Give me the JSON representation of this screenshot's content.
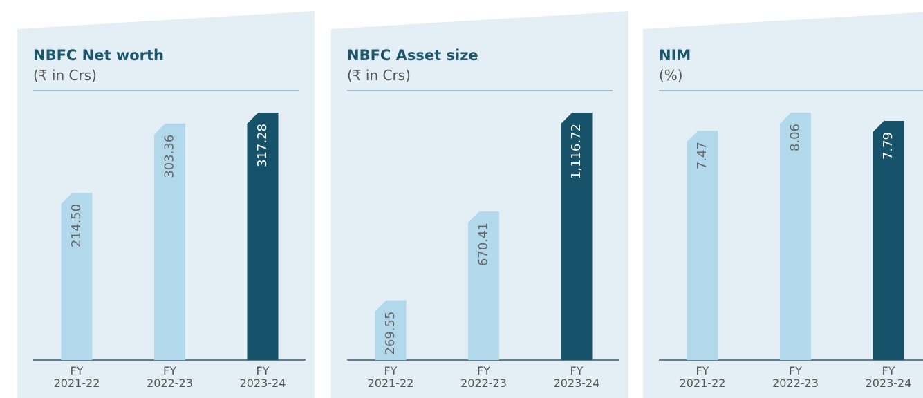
{
  "chart_data": [
    {
      "type": "bar",
      "title": "NBFC Net worth",
      "subtitle": "(₹ in Crs)",
      "categories": [
        "FY 2021-22",
        "FY 2022-23",
        "FY 2023-24"
      ],
      "values": [
        214.5,
        303.36,
        317.28
      ],
      "value_labels": [
        "214.50",
        "303.36",
        "317.28"
      ],
      "colors": [
        "#b1d8eb",
        "#b1d8eb",
        "#16536a"
      ]
    },
    {
      "type": "bar",
      "title": "NBFC Asset size",
      "subtitle": "(₹ in Crs)",
      "categories": [
        "FY 2021-22",
        "FY 2022-23",
        "FY 2023-24"
      ],
      "values": [
        269.55,
        670.41,
        1116.72
      ],
      "value_labels": [
        "269.55",
        "670.41",
        "1,116.72"
      ],
      "colors": [
        "#b1d8eb",
        "#b1d8eb",
        "#16536a"
      ]
    },
    {
      "type": "bar",
      "title": "NIM",
      "subtitle": "(%)",
      "categories": [
        "FY 2021-22",
        "FY 2022-23",
        "FY 2023-24"
      ],
      "values": [
        7.47,
        8.06,
        7.79
      ],
      "value_labels": [
        "7.47",
        "8.06",
        "7.79"
      ],
      "colors": [
        "#b1d8eb",
        "#b1d8eb",
        "#16536a"
      ]
    }
  ]
}
